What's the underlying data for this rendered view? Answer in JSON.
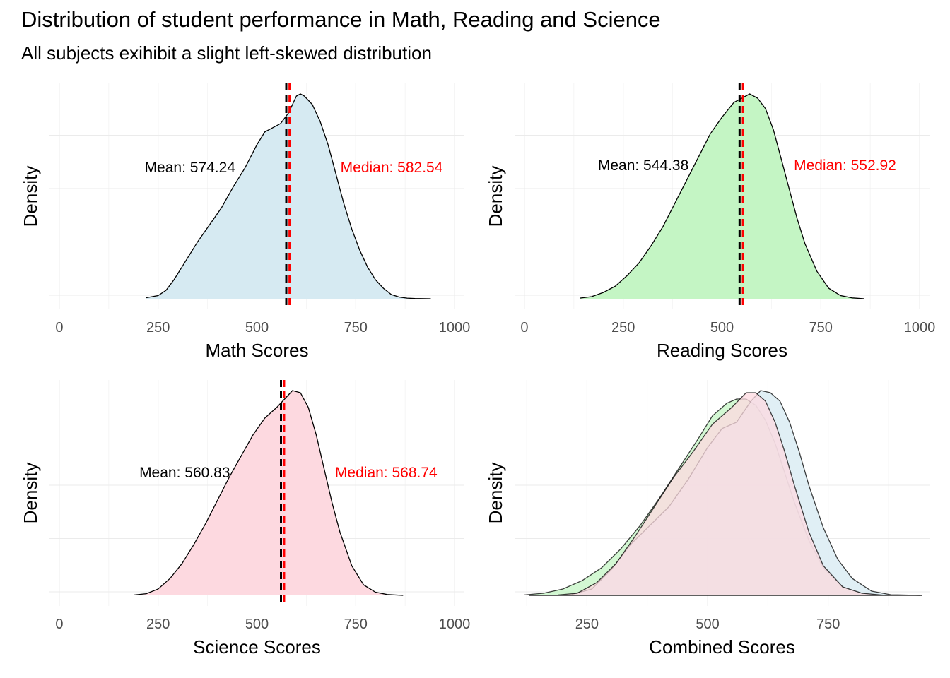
{
  "title": "Distribution of student performance in Math, Reading and Science",
  "subtitle": "All subjects exihibit a slight left-skewed distribution",
  "chart_data": [
    {
      "type": "area",
      "subtitle_panel": "",
      "xlabel": "Math Scores",
      "ylabel": "Density",
      "xlim": [
        -25,
        1025
      ],
      "xticks": [
        0,
        250,
        500,
        750,
        1000
      ],
      "tick_labels": [
        "0",
        "250",
        "500",
        "750",
        "1000"
      ],
      "grid": true,
      "fill_color": "#d6eaf2",
      "x": [
        220,
        250,
        270,
        290,
        310,
        330,
        350,
        380,
        410,
        440,
        470,
        500,
        520,
        540,
        560,
        580,
        600,
        610,
        620,
        640,
        660,
        680,
        700,
        720,
        740,
        760,
        780,
        800,
        820,
        840,
        860,
        880,
        900,
        940
      ],
      "density": [
        5e-05,
        0.00015,
        0.0004,
        0.0009,
        0.0015,
        0.0021,
        0.0027,
        0.0035,
        0.0043,
        0.0053,
        0.0062,
        0.0073,
        0.0079,
        0.0081,
        0.0083,
        0.0088,
        0.0096,
        0.0097,
        0.0096,
        0.0092,
        0.0084,
        0.0073,
        0.0059,
        0.0045,
        0.0033,
        0.0023,
        0.0015,
        0.0009,
        0.0005,
        0.0002,
        8e-05,
        3e-05,
        1e-05,
        0.0
      ],
      "ylim": [
        0,
        0.0097
      ],
      "mean": 574.24,
      "median": 582.54,
      "mean_label": "Mean: 574.24",
      "median_label": "Median: 582.54",
      "mean_color": "#000000",
      "median_color": "#ff0000"
    },
    {
      "type": "area",
      "xlabel": "Reading Scores",
      "ylabel": "Density",
      "xlim": [
        -25,
        1025
      ],
      "xticks": [
        0,
        250,
        500,
        750,
        1000
      ],
      "tick_labels": [
        "0",
        "250",
        "500",
        "750",
        "1000"
      ],
      "grid": true,
      "fill_color": "#c4f5c4",
      "x": [
        140,
        170,
        200,
        230,
        260,
        290,
        320,
        350,
        380,
        410,
        440,
        470,
        500,
        530,
        550,
        570,
        590,
        610,
        630,
        650,
        670,
        690,
        710,
        740,
        770,
        800,
        830,
        860
      ],
      "density": [
        3e-05,
        0.0001,
        0.0003,
        0.0006,
        0.0011,
        0.0017,
        0.0025,
        0.0034,
        0.0045,
        0.0056,
        0.0067,
        0.0078,
        0.0086,
        0.0093,
        0.0095,
        0.0097,
        0.0095,
        0.009,
        0.008,
        0.0066,
        0.0052,
        0.0038,
        0.0026,
        0.0013,
        0.0005,
        0.00015,
        4e-05,
        0.0
      ],
      "ylim": [
        0,
        0.0097
      ],
      "mean": 544.38,
      "median": 552.92,
      "mean_label": "Mean: 544.38",
      "median_label": "Median: 552.92",
      "mean_color": "#000000",
      "median_color": "#ff0000"
    },
    {
      "type": "area",
      "xlabel": "Science Scores",
      "ylabel": "Density",
      "xlim": [
        -25,
        1025
      ],
      "xticks": [
        0,
        250,
        500,
        750,
        1000
      ],
      "tick_labels": [
        "0",
        "250",
        "500",
        "750",
        "1000"
      ],
      "grid": true,
      "fill_color": "#fdd9e0",
      "x": [
        190,
        220,
        250,
        280,
        310,
        340,
        370,
        400,
        430,
        460,
        490,
        520,
        550,
        570,
        590,
        610,
        630,
        650,
        670,
        690,
        710,
        740,
        770,
        800,
        830,
        870
      ],
      "density": [
        2e-05,
        8e-05,
        0.0003,
        0.0008,
        0.0015,
        0.0024,
        0.0034,
        0.0045,
        0.0056,
        0.0066,
        0.0076,
        0.0084,
        0.0089,
        0.0093,
        0.0097,
        0.0096,
        0.0089,
        0.0076,
        0.006,
        0.0044,
        0.003,
        0.0014,
        0.0005,
        0.00015,
        4e-05,
        0.0
      ],
      "ylim": [
        0,
        0.0097
      ],
      "mean": 560.83,
      "median": 568.74,
      "mean_label": "Mean: 560.83",
      "median_label": "Median: 568.74",
      "mean_color": "#000000",
      "median_color": "#ff0000"
    },
    {
      "type": "area",
      "xlabel": "Combined Scores",
      "ylabel": "Density",
      "xlim": [
        100,
        960
      ],
      "xticks": [
        250,
        500,
        750
      ],
      "tick_labels": [
        "250",
        "500",
        "750"
      ],
      "grid": true,
      "series": [
        {
          "fill_color": "#c4f5c4",
          "x": [
            120,
            160,
            200,
            240,
            280,
            320,
            360,
            400,
            440,
            480,
            510,
            540,
            560,
            580,
            600,
            620,
            640,
            660,
            680,
            710,
            740,
            780,
            820,
            860
          ],
          "density": [
            2e-05,
            0.0001,
            0.0003,
            0.0007,
            0.0013,
            0.0022,
            0.0033,
            0.0046,
            0.006,
            0.0074,
            0.0085,
            0.0091,
            0.0093,
            0.0093,
            0.009,
            0.0083,
            0.0072,
            0.0058,
            0.0044,
            0.0026,
            0.0013,
            0.0004,
            0.0001,
            0.0
          ]
        },
        {
          "fill_color": "#d6eaf2",
          "x": [
            220,
            260,
            300,
            340,
            380,
            420,
            460,
            500,
            530,
            560,
            590,
            610,
            630,
            650,
            670,
            690,
            710,
            740,
            770,
            800,
            840,
            880,
            940
          ],
          "density": [
            5e-05,
            0.0003,
            0.0012,
            0.0024,
            0.0033,
            0.0042,
            0.0055,
            0.007,
            0.0079,
            0.0082,
            0.0092,
            0.0097,
            0.0096,
            0.0092,
            0.0082,
            0.0068,
            0.0052,
            0.0032,
            0.0017,
            0.0008,
            0.0002,
            3e-05,
            0.0
          ]
        },
        {
          "fill_color": "#fdd9e0",
          "x": [
            190,
            230,
            270,
            310,
            350,
            390,
            430,
            470,
            510,
            550,
            580,
            600,
            620,
            640,
            660,
            680,
            710,
            740,
            780,
            820,
            870
          ],
          "density": [
            2e-05,
            0.0001,
            0.0006,
            0.0015,
            0.0028,
            0.0042,
            0.0056,
            0.0068,
            0.0081,
            0.0089,
            0.0096,
            0.0096,
            0.0092,
            0.0082,
            0.0068,
            0.0052,
            0.003,
            0.0014,
            0.0004,
            0.0001,
            0.0
          ]
        }
      ],
      "ylim": [
        0,
        0.0097
      ]
    }
  ]
}
